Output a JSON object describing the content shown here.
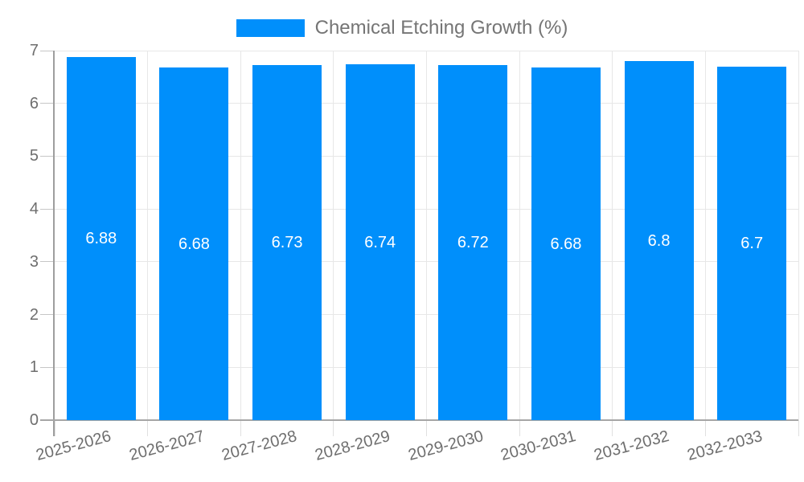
{
  "legend": {
    "label": "Chemical Etching Growth (%)"
  },
  "chart_data": {
    "type": "bar",
    "title": "Chemical Etching Growth (%)",
    "categories": [
      "2025-2026",
      "2026-2027",
      "2027-2028",
      "2028-2029",
      "2029-2030",
      "2030-2031",
      "2031-2032",
      "2032-2033"
    ],
    "series": [
      {
        "name": "Chemical Etching Growth (%)",
        "values": [
          6.88,
          6.68,
          6.73,
          6.74,
          6.72,
          6.68,
          6.8,
          6.7
        ]
      }
    ],
    "data_labels": [
      "6.88",
      "6.68",
      "6.73",
      "6.74",
      "6.72",
      "6.68",
      "6.8",
      "6.7"
    ],
    "xlabel": "",
    "ylabel": "",
    "ylim": [
      0,
      7
    ],
    "yticks": [
      0,
      1,
      2,
      3,
      4,
      5,
      6,
      7
    ],
    "grid": true,
    "legend_position": "top",
    "colors": {
      "bar": "#008FFB",
      "grid": "#e7e7e7",
      "axis_line": "#a6a6a6",
      "y_axis_line": "#9e9e9e",
      "tick": "#c6c6c6",
      "x_tick": "#e0e0e0",
      "axis_label": "#6e6e6e",
      "data_label": "#ffffff",
      "legend_text": "#757575"
    }
  }
}
